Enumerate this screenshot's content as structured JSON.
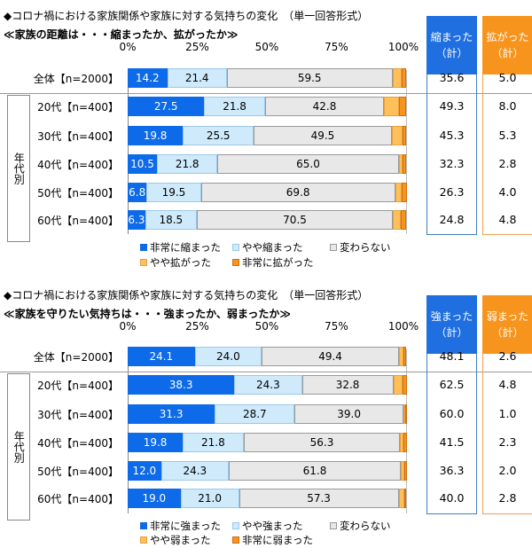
{
  "colors": {
    "very": "#0d6ae8",
    "some": "#cfeafb",
    "same": "#e8e8e8",
    "some_neg": "#ffc05a",
    "very_neg": "#f7941d",
    "blue": "#1f6fe0",
    "orange": "#f7941d",
    "blue_border": "#3f7fc2",
    "orange_border": "#f0a050"
  },
  "chart_data": [
    {
      "type": "bar",
      "stacked": true,
      "orientation": "horizontal",
      "title": "◆コロナ禍における家族関係や家族に対する気持ちの変化　（単一回答形式）",
      "subtitle": "≪家族の距離は・・・縮まったか、拡がったか≫",
      "ticks": [
        "0%",
        "25%",
        "50%",
        "75%",
        "100%"
      ],
      "xlim": [
        0,
        100
      ],
      "group_label": "年代別",
      "categories": [
        "全体【n=2000】",
        "20代【n=400】",
        "30代【n=400】",
        "40代【n=400】",
        "50代【n=400】",
        "60代【n=400】"
      ],
      "series": [
        {
          "name": "非常に縮まった",
          "values": [
            14.2,
            27.5,
            19.8,
            10.5,
            6.8,
            6.3
          ]
        },
        {
          "name": "やや縮まった",
          "values": [
            21.4,
            21.8,
            25.5,
            21.8,
            19.5,
            18.5
          ]
        },
        {
          "name": "変わらない",
          "values": [
            59.5,
            42.8,
            49.5,
            65.0,
            69.8,
            70.5
          ]
        },
        {
          "name": "やや拡がった",
          "values": [
            3.2,
            5.5,
            4.0,
            1.5,
            2.3,
            2.8
          ]
        },
        {
          "name": "非常に拡がった",
          "values": [
            1.8,
            2.5,
            1.3,
            1.3,
            1.8,
            2.0
          ]
        }
      ],
      "totals": [
        {
          "header": [
            "縮まった",
            "（計）"
          ],
          "values": [
            "35.6",
            "49.3",
            "45.3",
            "32.3",
            "26.3",
            "24.8"
          ]
        },
        {
          "header": [
            "拡がった",
            "（計）"
          ],
          "values": [
            "5.0",
            "8.0",
            "5.3",
            "2.8",
            "4.0",
            "4.8"
          ]
        }
      ]
    },
    {
      "type": "bar",
      "stacked": true,
      "orientation": "horizontal",
      "title": "◆コロナ禍における家族関係や家族に対する気持ちの変化　（単一回答形式）",
      "subtitle": "≪家族を守りたい気持ちは・・・強まったか、弱まったか≫",
      "ticks": [
        "0%",
        "25%",
        "50%",
        "75%",
        "100%"
      ],
      "xlim": [
        0,
        100
      ],
      "group_label": "年代別",
      "categories": [
        "全体【n=2000】",
        "20代【n=400】",
        "30代【n=400】",
        "40代【n=400】",
        "50代【n=400】",
        "60代【n=400】"
      ],
      "series": [
        {
          "name": "非常に強まった",
          "values": [
            24.1,
            38.3,
            31.3,
            19.8,
            12.0,
            19.0
          ]
        },
        {
          "name": "やや強まった",
          "values": [
            24.0,
            24.3,
            28.7,
            21.8,
            24.3,
            21.0
          ]
        },
        {
          "name": "変わらない",
          "values": [
            49.4,
            32.8,
            39.0,
            56.3,
            61.8,
            57.3
          ]
        },
        {
          "name": "やや弱まった",
          "values": [
            1.7,
            3.3,
            0.8,
            1.0,
            1.3,
            2.0
          ]
        },
        {
          "name": "非常に弱まった",
          "values": [
            0.9,
            1.5,
            0.3,
            1.3,
            0.8,
            0.8
          ]
        }
      ],
      "totals": [
        {
          "header": [
            "強まった",
            "（計）"
          ],
          "values": [
            "48.1",
            "62.5",
            "60.0",
            "41.5",
            "36.3",
            "40.0"
          ]
        },
        {
          "header": [
            "弱まった",
            "（計）"
          ],
          "values": [
            "2.6",
            "4.8",
            "1.0",
            "2.3",
            "2.0",
            "2.8"
          ]
        }
      ]
    }
  ]
}
